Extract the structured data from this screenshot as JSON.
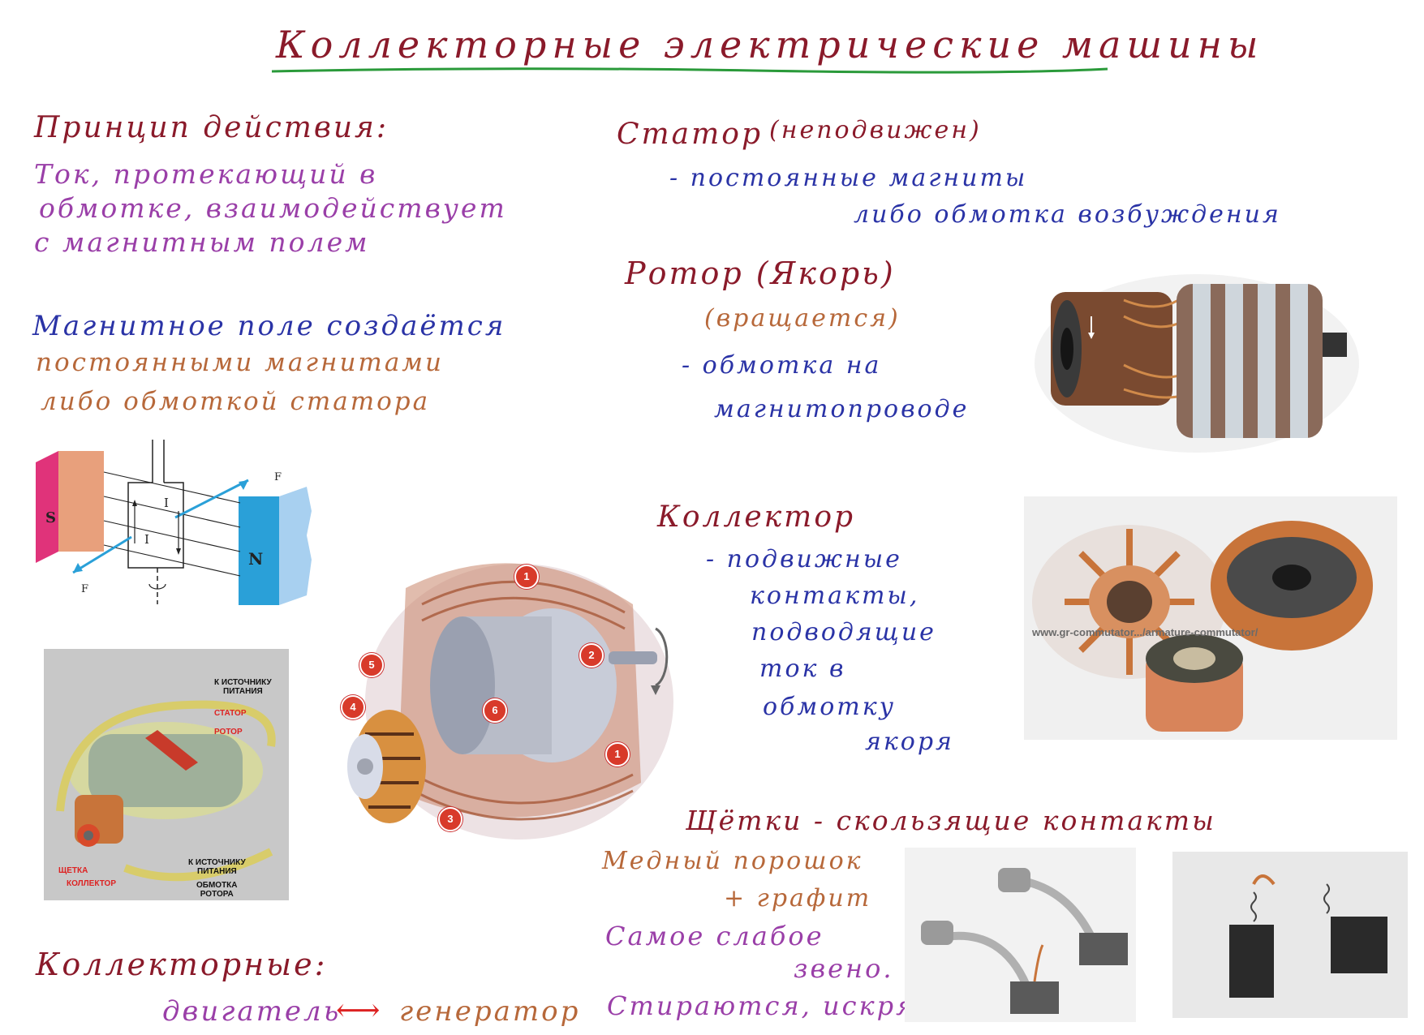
{
  "title": "Коллекторные электрические машины",
  "principle": {
    "heading": "Принцип действия:",
    "lines": [
      "Ток, протекающий в",
      "обмотке, взаимодействует",
      "с магнитным полем"
    ]
  },
  "field": {
    "lines": [
      "Магнитное поле создаётся",
      "постоянными магнитами",
      "либо обмоткой статора"
    ]
  },
  "stator": {
    "title": "Статор",
    "note": "(неподвижен)",
    "lines": [
      "- постоянные магниты",
      "либо обмотка возбуждения"
    ]
  },
  "rotor": {
    "title": "Ротор (Якорь)",
    "note": "(вращается)",
    "lines": [
      "- обмотка на",
      "магнитопроводе"
    ]
  },
  "collector": {
    "title": "Коллектор",
    "lines": [
      "- подвижные",
      "контакты,",
      "подводящие",
      "ток в",
      "обмотку",
      "якоря"
    ]
  },
  "brushes": {
    "title": "Щётки - скользящие контакты",
    "lines": [
      "Медный порошок",
      "+ графит",
      "Самое слабое",
      "звено.",
      "Стираются, искрят"
    ]
  },
  "bottom": {
    "title": "Коллекторные:",
    "left": "двигатель",
    "arrow": "⟷",
    "right": "генератор"
  },
  "diagram_labels": {
    "s": "S",
    "n": "N",
    "i1": "I",
    "i2": "I",
    "f1": "F",
    "f2": "F"
  },
  "cutaway_labels": {
    "source1": "К ИСТОЧНИКУ\nПИТАНИЯ",
    "stator": "СТАТОР",
    "rotor": "РОТОР",
    "source2": "К ИСТОЧНИКУ\nПИТАНИЯ",
    "brush": "ЩЕТКА",
    "collector": "КОЛЛЕКТОР",
    "winding": "ОБМОТКА\nРОТОРА"
  },
  "motor_badges": [
    "1",
    "2",
    "1",
    "3",
    "4",
    "5",
    "6"
  ],
  "watermark": "www.gr-commutator.../armature-commutator/",
  "colors": {
    "dark": "#8a1a2a",
    "purple": "#9a3fa8",
    "blue": "#2a33a6",
    "brown": "#b7683a",
    "underline": "#2a9a3a",
    "magnet_s": "#e0337a",
    "magnet_n": "#2aa0d8",
    "copper": "#c8743a"
  }
}
